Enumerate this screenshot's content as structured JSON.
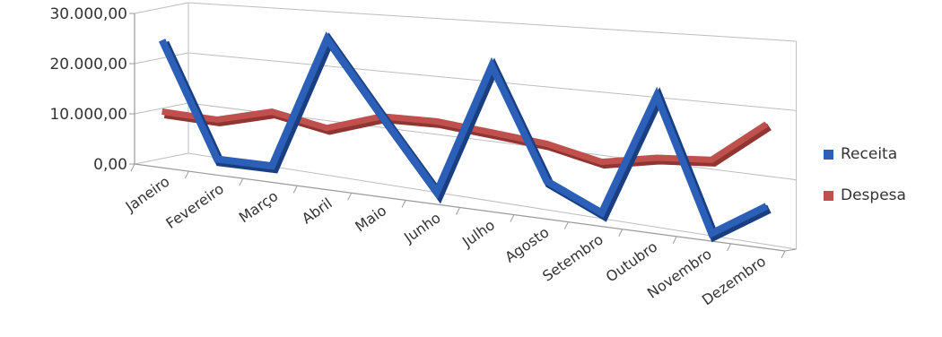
{
  "chart_data": {
    "type": "line",
    "categories": [
      "Janeiro",
      "Fevereiro",
      "Março",
      "Abril",
      "Maio",
      "Junho",
      "Julho",
      "Agosto",
      "Setembro",
      "Outubro",
      "Novembro",
      "Dezembro"
    ],
    "series": [
      {
        "name": "Receita",
        "color": "#2b5fb8",
        "values": [
          25000,
          3000,
          3000,
          27000,
          14000,
          2000,
          24000,
          6000,
          2000,
          21000,
          1000,
          6000
        ]
      },
      {
        "name": "Despesa",
        "color": "#c0504d",
        "values": [
          11000,
          10500,
          13000,
          11000,
          14000,
          14000,
          13000,
          12000,
          10000,
          11500,
          12000,
          18000
        ]
      }
    ],
    "y_ticks": [
      "0,00",
      "10.000,00",
      "20.000,00",
      "30.000,00"
    ],
    "ylim": [
      0,
      30000
    ],
    "legend_position": "right",
    "grid": true
  }
}
